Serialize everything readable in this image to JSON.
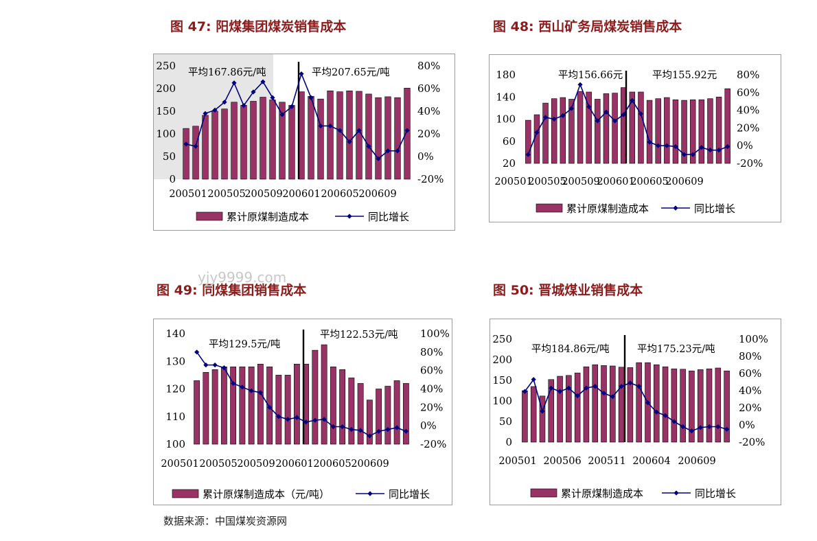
{
  "titles": [
    {
      "num": "图 47:",
      "text": "阳煤集团煤炭销售成本"
    },
    {
      "num": "图 48:",
      "text": "西山矿务局煤炭销售成本"
    },
    {
      "num": "图 49:",
      "text": "同煤集团销售成本"
    },
    {
      "num": "图 50:",
      "text": "晋城煤业销售成本"
    }
  ],
  "source": "数据来源：中国煤炭资源网",
  "watermark": "yjy9999.com",
  "colors": {
    "bar": "#993366",
    "line": "#000080",
    "title": "#8b1c1c",
    "shade": "#e6e6e6"
  },
  "chart_data": [
    {
      "type": "bar",
      "x_tick_labels": [
        "200501",
        "200505",
        "200509",
        "200601",
        "200605",
        "200609"
      ],
      "ylim": [
        0,
        250
      ],
      "y_ticks": [
        "250",
        "200",
        "150",
        "100",
        "50",
        "0"
      ],
      "y2lim": [
        -20,
        80
      ],
      "y2_ticks": [
        "80%",
        "60%",
        "40%",
        "20%",
        "0%",
        "-20%"
      ],
      "annotations": [
        "平均167.86元/吨",
        "平均207.65元/吨"
      ],
      "series": [
        {
          "name": "累计原煤制造成本",
          "kind": "bar",
          "values": [
            112,
            117,
            141,
            150,
            155,
            170,
            163,
            172,
            181,
            175,
            170,
            163,
            193,
            183,
            177,
            195,
            193,
            195,
            194,
            188,
            180,
            182,
            180,
            201
          ]
        },
        {
          "name": "同比增长",
          "kind": "line",
          "axis": "right",
          "values": [
            11,
            9,
            38,
            41,
            48,
            65,
            45,
            57,
            66,
            52,
            37,
            44,
            73,
            52,
            27,
            27,
            23,
            13,
            23,
            9,
            -2,
            5,
            5,
            23
          ]
        }
      ],
      "legend": "bottom"
    },
    {
      "type": "bar",
      "x_tick_labels": [
        "200501",
        "200505",
        "200509",
        "200601",
        "200605",
        "200609"
      ],
      "ylim": [
        20,
        180
      ],
      "y_ticks": [
        "180",
        "140",
        "100",
        "60",
        "20"
      ],
      "y2lim": [
        -20,
        80
      ],
      "y2_ticks": [
        "80%",
        "60%",
        "40%",
        "20%",
        "0%",
        "-20%"
      ],
      "annotations": [
        "平均156.66元",
        "平均155.92元"
      ],
      "series": [
        {
          "name": "累计原煤制造成本",
          "kind": "bar",
          "values": [
            98,
            108,
            129,
            137,
            139,
            136,
            150,
            149,
            136,
            146,
            147,
            157,
            149,
            149,
            134,
            137,
            139,
            135,
            134,
            135,
            135,
            137,
            140,
            155
          ]
        },
        {
          "name": "同比增长",
          "kind": "line",
          "axis": "right",
          "values": [
            -10,
            15,
            32,
            30,
            34,
            42,
            69,
            44,
            28,
            38,
            28,
            35,
            51,
            36,
            4,
            0,
            0,
            -1,
            -10,
            -10,
            -2,
            -5,
            -5,
            -1
          ]
        }
      ],
      "legend": "bottom"
    },
    {
      "type": "bar",
      "x_tick_labels": [
        "200501",
        "200505",
        "200509",
        "200601",
        "200605",
        "200609"
      ],
      "ylim": [
        100,
        140
      ],
      "y_ticks": [
        "140",
        "130",
        "120",
        "110",
        "100"
      ],
      "y2lim": [
        -20,
        100
      ],
      "y2_ticks": [
        "100%",
        "80%",
        "60%",
        "40%",
        "20%",
        "0%",
        "-20%"
      ],
      "annotations": [
        "平均129.5元/吨",
        "平均122.53元/吨"
      ],
      "series": [
        {
          "name": "累计原煤制造成本（元/吨）",
          "kind": "bar",
          "values": [
            123,
            126,
            127,
            128,
            128,
            128,
            128,
            129,
            128,
            125,
            125,
            129,
            129,
            134,
            136,
            128,
            127,
            124,
            122,
            116,
            120,
            121,
            123,
            122
          ]
        },
        {
          "name": "同比增长",
          "kind": "line",
          "axis": "right",
          "values": [
            80,
            66,
            66,
            63,
            46,
            42,
            38,
            36,
            20,
            10,
            7,
            9,
            4,
            6,
            7,
            -1,
            -1,
            -4,
            -5,
            -11,
            -6,
            -4,
            -2,
            -6
          ]
        }
      ],
      "legend": "bottom"
    },
    {
      "type": "bar",
      "x_tick_labels": [
        "200501",
        "200506",
        "200511",
        "200604",
        "200609"
      ],
      "ylim": [
        0,
        250
      ],
      "y_ticks": [
        "250",
        "200",
        "150",
        "100",
        "50",
        "0"
      ],
      "y2lim": [
        -20,
        100
      ],
      "y2_ticks": [
        "100%",
        "80%",
        "60%",
        "40%",
        "20%",
        "0%",
        "-20%"
      ],
      "annotations": [
        "平均184.86元/吨",
        "平均175.23元/吨"
      ],
      "series": [
        {
          "name": "累计原煤制造成本",
          "kind": "bar",
          "values": [
            125,
            135,
            112,
            152,
            160,
            162,
            168,
            183,
            188,
            186,
            185,
            182,
            181,
            193,
            193,
            188,
            183,
            178,
            177,
            173,
            176,
            178,
            180,
            173
          ]
        },
        {
          "name": "同比增长",
          "kind": "line",
          "axis": "right",
          "values": [
            39,
            53,
            16,
            43,
            39,
            43,
            34,
            43,
            45,
            37,
            33,
            45,
            49,
            45,
            26,
            15,
            11,
            4,
            -2,
            -7,
            -3,
            -2,
            -2,
            -5
          ]
        }
      ],
      "legend": "bottom"
    }
  ]
}
